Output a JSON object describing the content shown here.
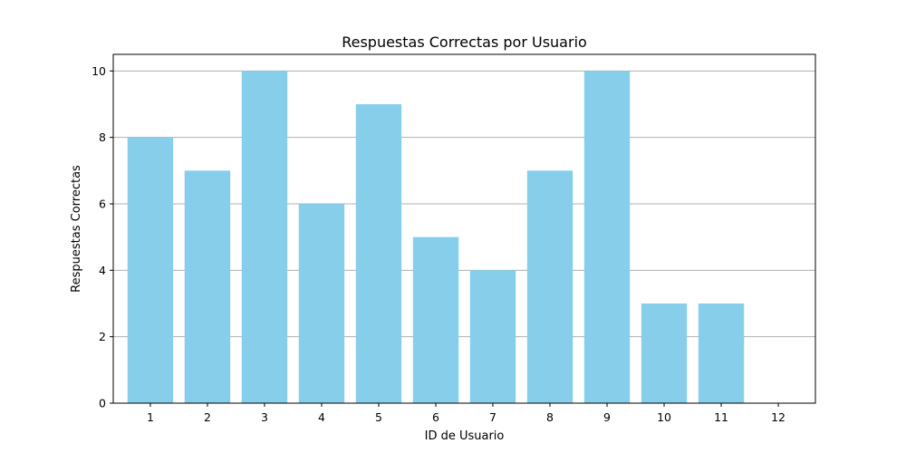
{
  "chart_data": {
    "type": "bar",
    "title": "Respuestas Correctas por Usuario",
    "xlabel": "ID de Usuario",
    "ylabel": "Respuestas Correctas",
    "categories": [
      "1",
      "2",
      "3",
      "4",
      "5",
      "6",
      "7",
      "8",
      "9",
      "10",
      "11",
      "12"
    ],
    "values": [
      8,
      7,
      10,
      6,
      9,
      5,
      4,
      7,
      10,
      3,
      3,
      0
    ],
    "ylim": [
      0,
      10.5
    ],
    "yticks": [
      "0",
      "2",
      "4",
      "6",
      "8",
      "10"
    ],
    "grid": "y-axis",
    "bar_color": "#87ceeb"
  }
}
